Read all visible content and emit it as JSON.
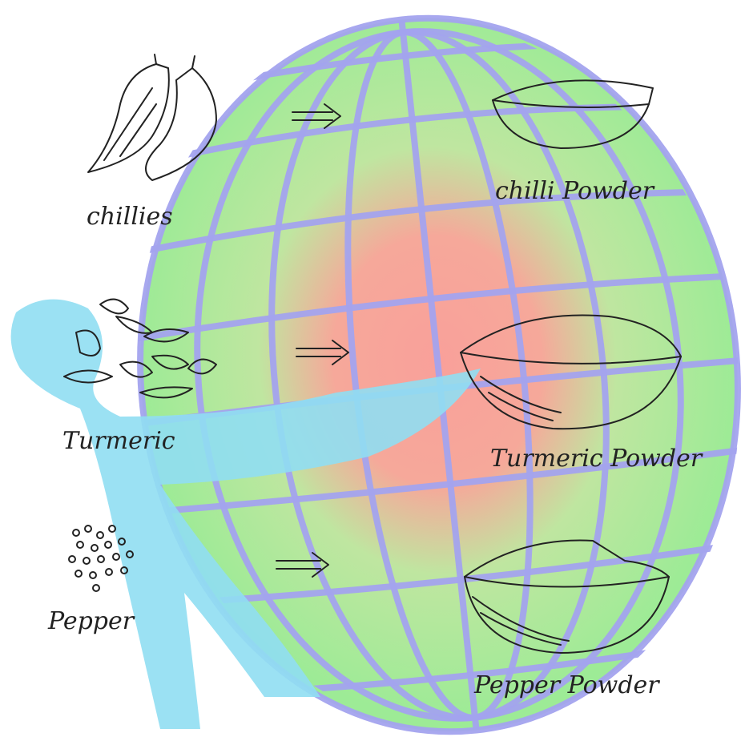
{
  "rows": [
    {
      "raw": "chillies",
      "product": "chilli Powder"
    },
    {
      "raw": "Turmeric",
      "product": "Turmeric Powder"
    },
    {
      "raw": "Pepper",
      "product": "Pepper Powder"
    }
  ]
}
